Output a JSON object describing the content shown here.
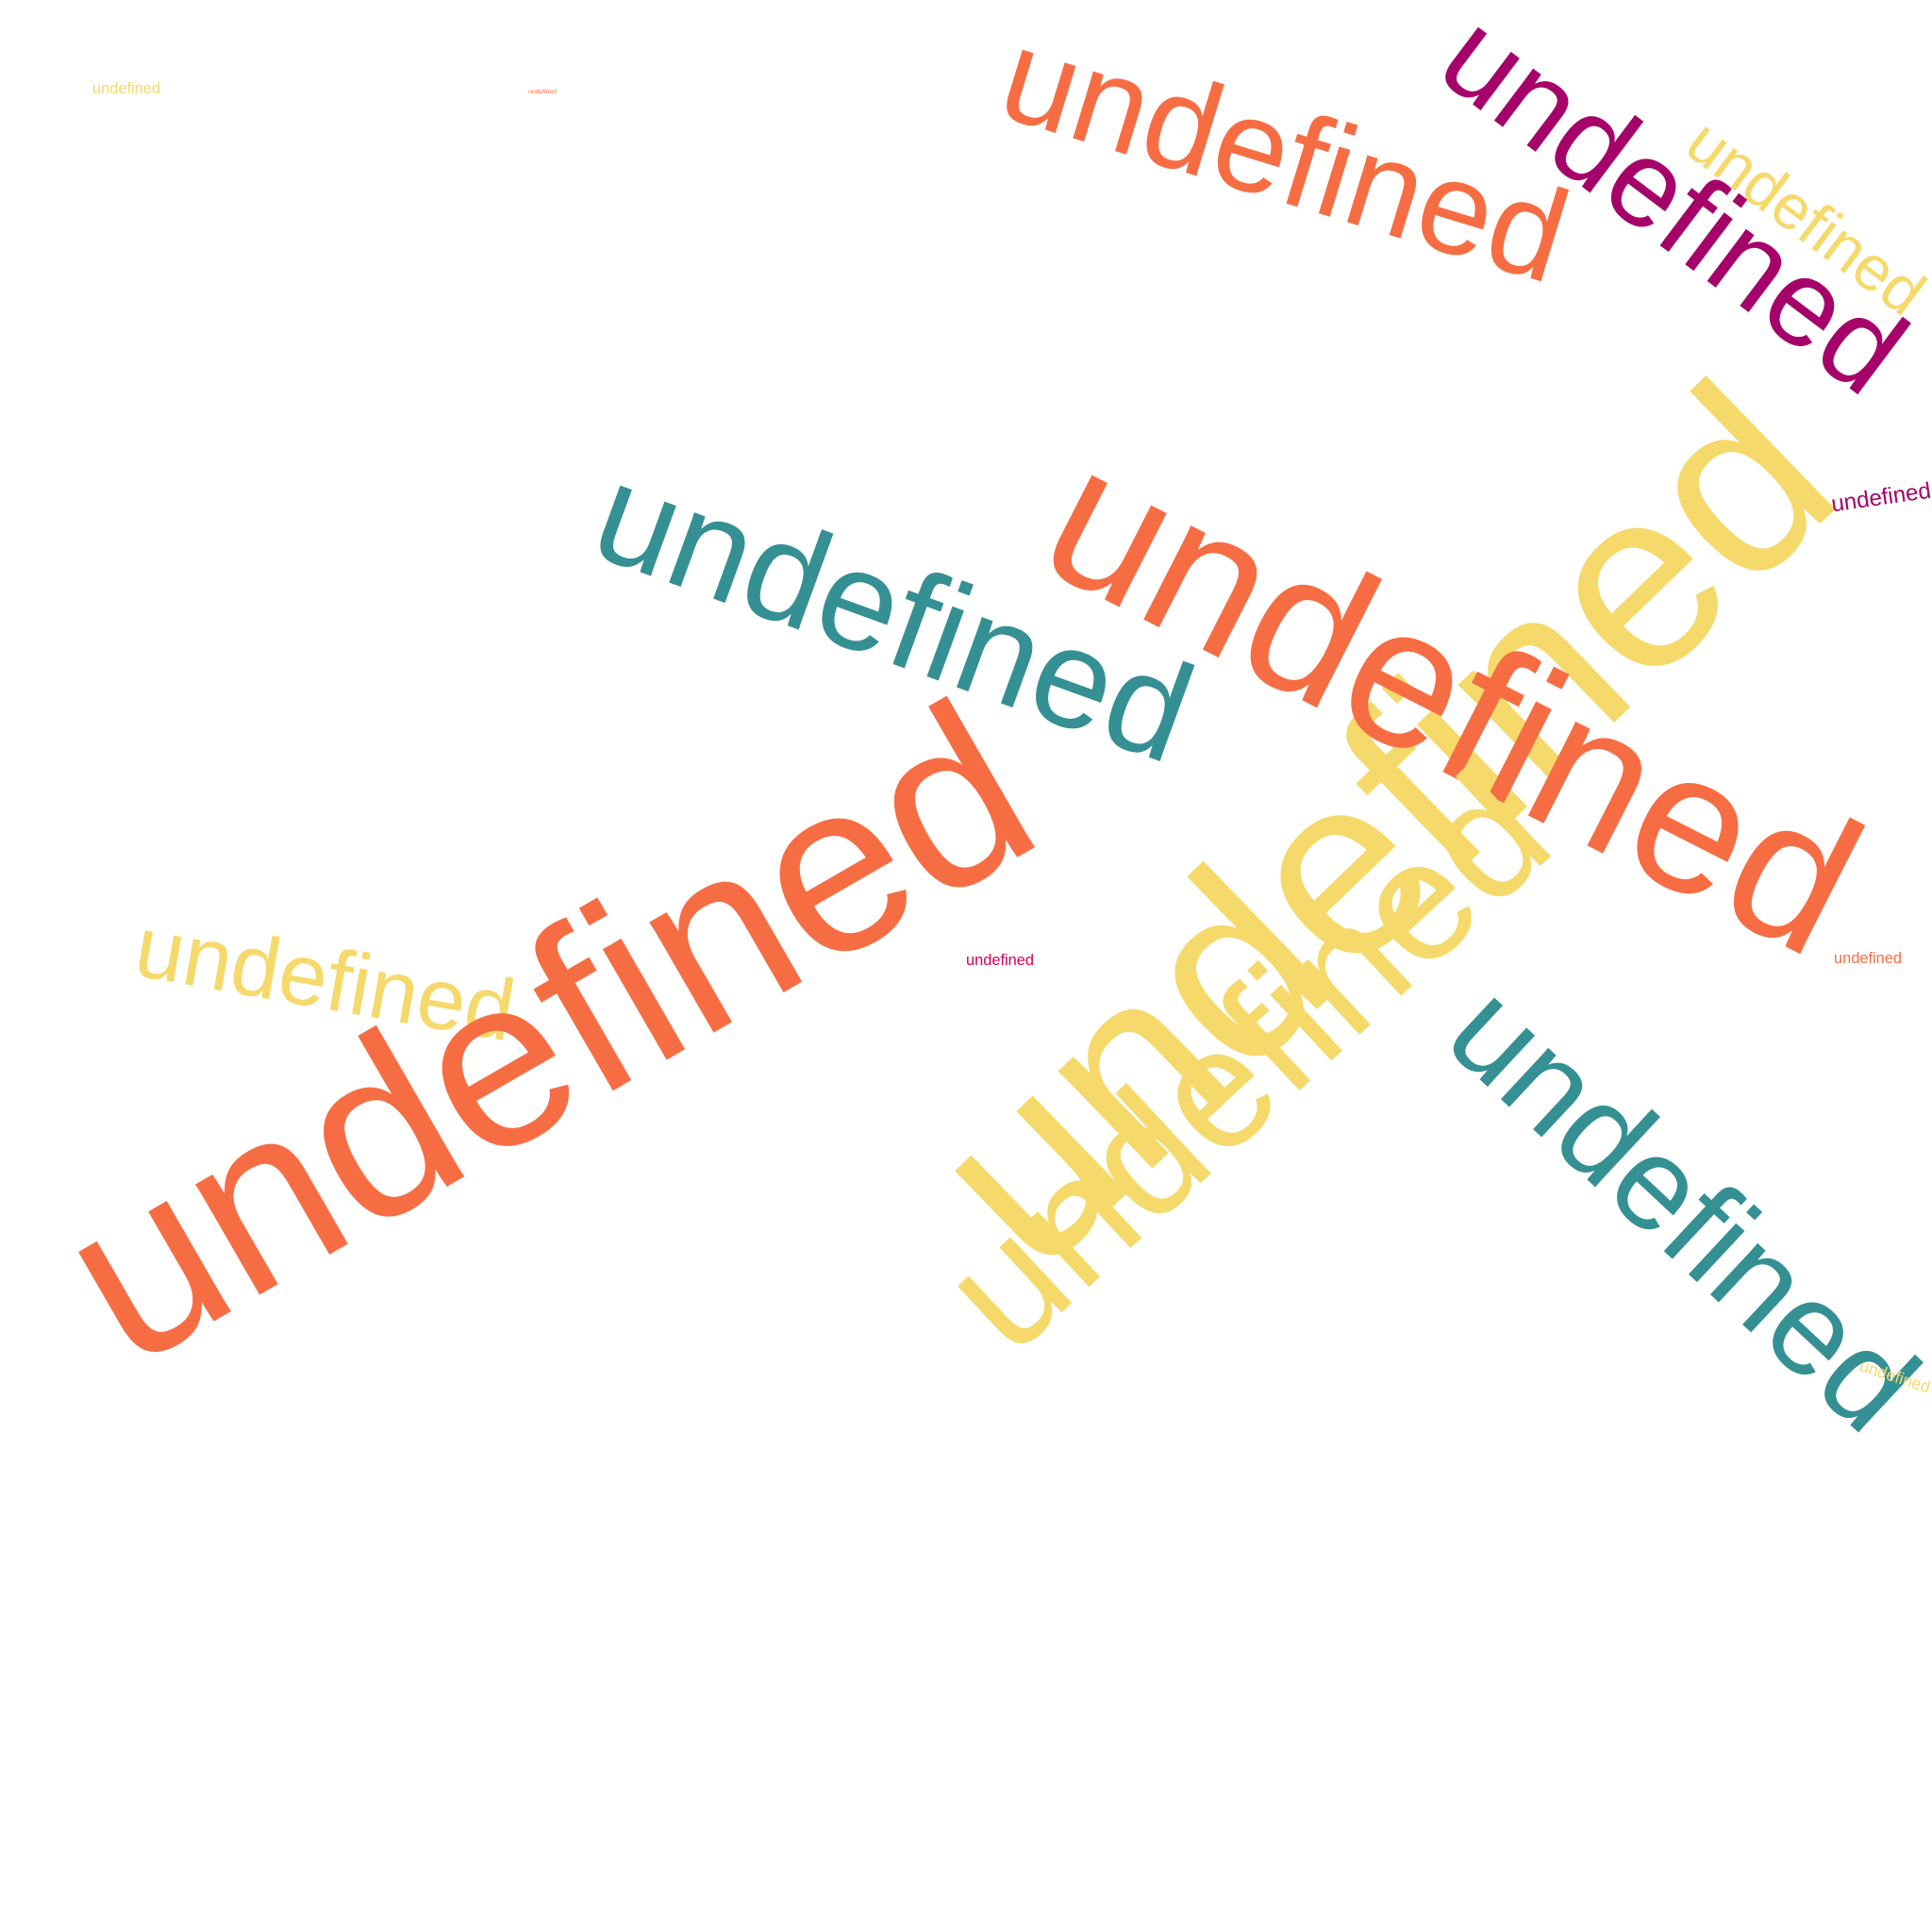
{
  "word_cloud": {
    "palette": {
      "orange": "#f76d43",
      "yellow": "#f5d96b",
      "teal": "#359093",
      "magenta": "#a5036a",
      "crimson": "#d6005b"
    },
    "words": [
      {
        "id": "w01",
        "text": "undefined",
        "color": "#f5d96b"
      },
      {
        "id": "w02",
        "text": "undefined",
        "color": "#f76d43"
      },
      {
        "id": "w03",
        "text": "undefined",
        "color": "#f76d43"
      },
      {
        "id": "w04",
        "text": "undefined",
        "color": "#a5036a"
      },
      {
        "id": "w05",
        "text": "undefined",
        "color": "#f5d96b"
      },
      {
        "id": "w06",
        "text": "undefined",
        "color": "#f5d96b"
      },
      {
        "id": "w07",
        "text": "undefined",
        "color": "#a5036a"
      },
      {
        "id": "w08",
        "text": "undefined",
        "color": "#359093"
      },
      {
        "id": "w09",
        "text": "undefined",
        "color": "#f76d43"
      },
      {
        "id": "w10",
        "text": "undefined",
        "color": "#f5d96b"
      },
      {
        "id": "w11",
        "text": "undefined",
        "color": "#f76d43"
      },
      {
        "id": "w12",
        "text": "undefined",
        "color": "#f5d96b"
      },
      {
        "id": "w13",
        "text": "undefined",
        "color": "#359093"
      },
      {
        "id": "w14",
        "text": "undefined",
        "color": "#f5d96b"
      },
      {
        "id": "w15",
        "text": "undefined",
        "color": "#d6005b"
      },
      {
        "id": "w16",
        "text": "undefined",
        "color": "#f76d43"
      }
    ]
  }
}
